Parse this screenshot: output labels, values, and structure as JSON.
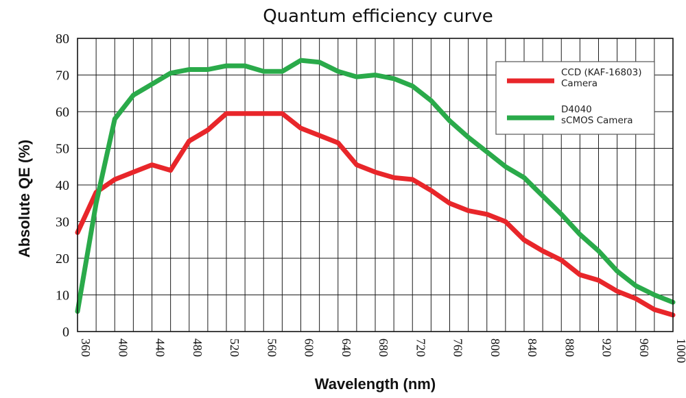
{
  "chart_data": {
    "type": "line",
    "title": "Quantum efficiency curve",
    "xlabel": "Wavelength (nm)",
    "ylabel": "Absolute QE (%)",
    "xlim": [
      360,
      1000
    ],
    "ylim": [
      0,
      80
    ],
    "x_ticks": [
      360,
      400,
      440,
      480,
      520,
      560,
      600,
      640,
      680,
      720,
      760,
      800,
      840,
      880,
      920,
      960,
      1000
    ],
    "y_ticks": [
      0,
      10,
      20,
      30,
      40,
      50,
      60,
      70,
      80
    ],
    "grid": true,
    "legend_position": "top-right",
    "series": [
      {
        "name": "CCD (KAF-16803)\nCamera",
        "color": "#e8262a",
        "points": [
          [
            360,
            27
          ],
          [
            380,
            38
          ],
          [
            400,
            41.5
          ],
          [
            420,
            43.5
          ],
          [
            440,
            45.5
          ],
          [
            460,
            44
          ],
          [
            480,
            52
          ],
          [
            500,
            55
          ],
          [
            520,
            59.5
          ],
          [
            540,
            59.5
          ],
          [
            560,
            59.5
          ],
          [
            580,
            59.5
          ],
          [
            600,
            55.5
          ],
          [
            620,
            53.5
          ],
          [
            640,
            51.5
          ],
          [
            660,
            45.5
          ],
          [
            680,
            43.5
          ],
          [
            700,
            42
          ],
          [
            720,
            41.5
          ],
          [
            740,
            38.5
          ],
          [
            760,
            35
          ],
          [
            780,
            33
          ],
          [
            800,
            32
          ],
          [
            820,
            30
          ],
          [
            840,
            25
          ],
          [
            860,
            22
          ],
          [
            880,
            19.5
          ],
          [
            900,
            15.5
          ],
          [
            920,
            14
          ],
          [
            940,
            11
          ],
          [
            960,
            9
          ],
          [
            980,
            6
          ],
          [
            1000,
            4.5
          ]
        ]
      },
      {
        "name": "D4040\nsCMOS Camera",
        "color": "#2aaa4a",
        "points": [
          [
            360,
            5.5
          ],
          [
            380,
            35
          ],
          [
            400,
            58
          ],
          [
            420,
            64.5
          ],
          [
            440,
            67.5
          ],
          [
            460,
            70.5
          ],
          [
            480,
            71.5
          ],
          [
            500,
            71.5
          ],
          [
            520,
            72.5
          ],
          [
            540,
            72.5
          ],
          [
            560,
            71
          ],
          [
            580,
            71
          ],
          [
            600,
            74
          ],
          [
            620,
            73.5
          ],
          [
            640,
            71
          ],
          [
            660,
            69.5
          ],
          [
            680,
            70
          ],
          [
            700,
            69
          ],
          [
            720,
            67
          ],
          [
            740,
            63
          ],
          [
            760,
            57.5
          ],
          [
            780,
            53
          ],
          [
            800,
            49
          ],
          [
            820,
            45
          ],
          [
            840,
            42
          ],
          [
            860,
            37
          ],
          [
            880,
            32
          ],
          [
            900,
            26.5
          ],
          [
            920,
            22
          ],
          [
            940,
            16.5
          ],
          [
            960,
            12.5
          ],
          [
            980,
            10
          ],
          [
            1000,
            8
          ]
        ]
      }
    ]
  }
}
